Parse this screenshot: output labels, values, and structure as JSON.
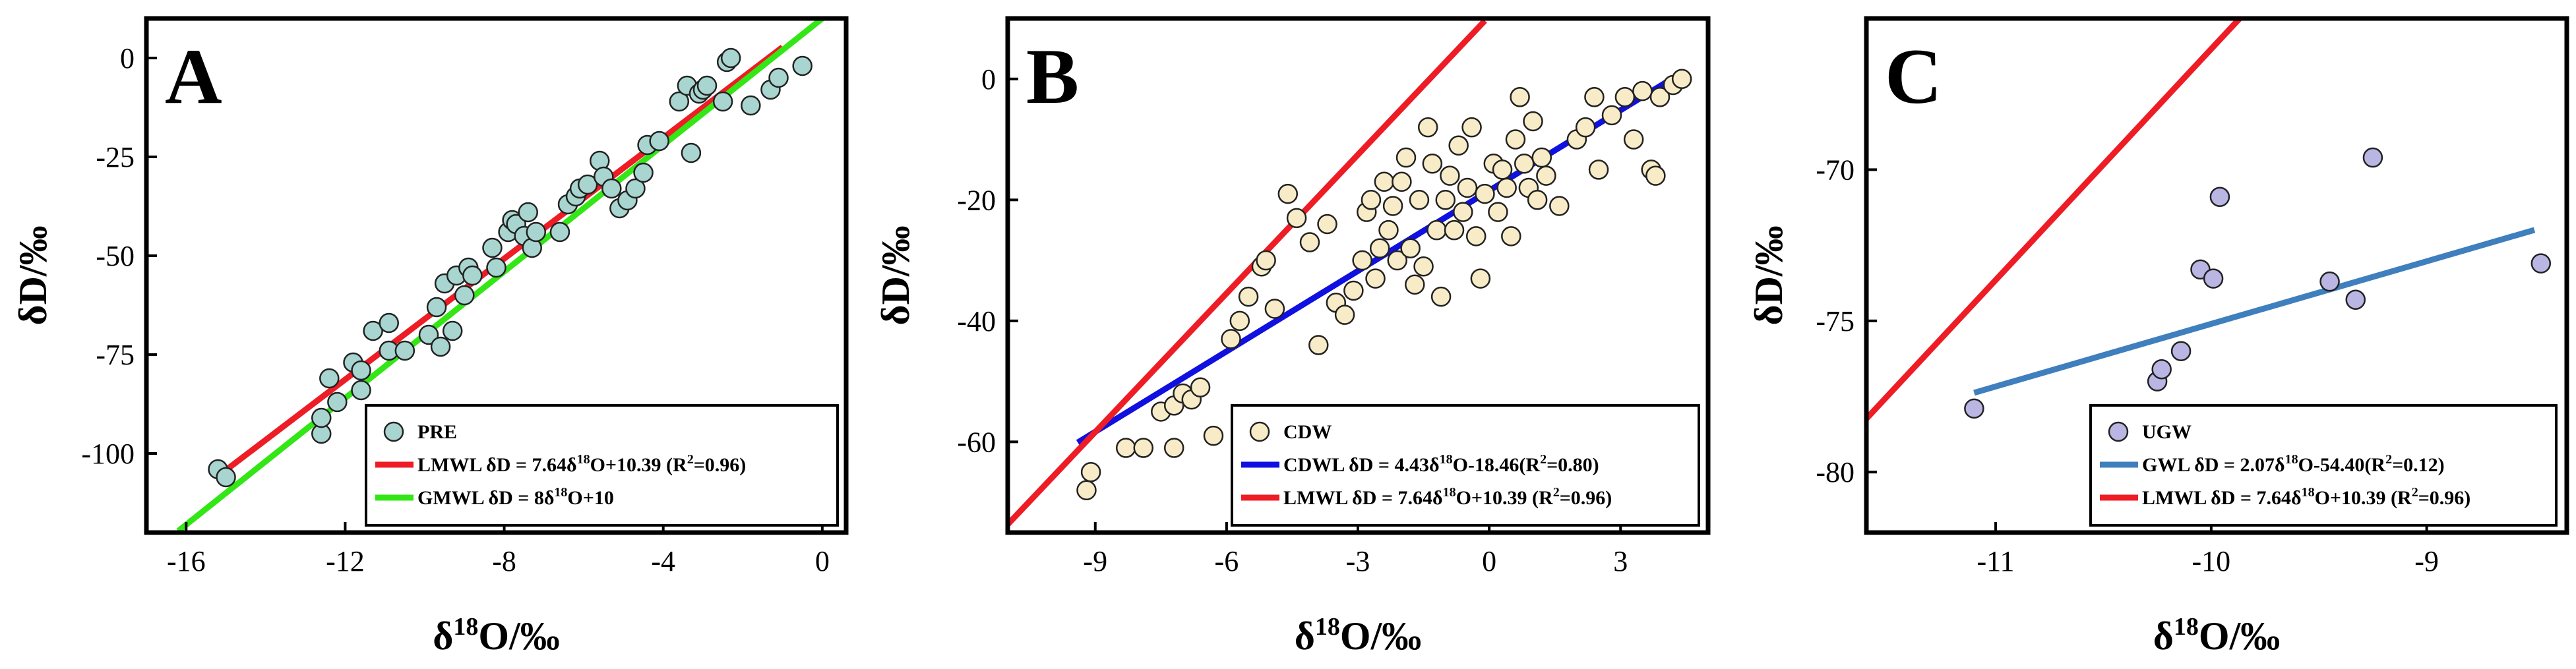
{
  "chart_data": [
    {
      "panel": "A",
      "type": "scatter",
      "xlabel_main": "δ",
      "xlabel_sup": "18",
      "xlabel_tail": "O/‰",
      "ylabel": "δD/‰",
      "xlim": [
        -17,
        0.6
      ],
      "ylim": [
        -120,
        10
      ],
      "xticks": [
        -16,
        -12,
        -8,
        -4,
        0
      ],
      "yticks": [
        0,
        -25,
        -50,
        -75,
        -100
      ],
      "scatter": {
        "name": "PRE",
        "color": "#a8d5cf",
        "points": [
          [
            -15.2,
            -104
          ],
          [
            -15,
            -106
          ],
          [
            -12.6,
            -95
          ],
          [
            -12.6,
            -91
          ],
          [
            -12.4,
            -81
          ],
          [
            -12.2,
            -87
          ],
          [
            -11.8,
            -77
          ],
          [
            -11.6,
            -84
          ],
          [
            -11.6,
            -79
          ],
          [
            -11.3,
            -69
          ],
          [
            -10.9,
            -67
          ],
          [
            -10.9,
            -74
          ],
          [
            -10.5,
            -74
          ],
          [
            -9.9,
            -70
          ],
          [
            -9.7,
            -63
          ],
          [
            -9.6,
            -73
          ],
          [
            -9.5,
            -57
          ],
          [
            -9.3,
            -69
          ],
          [
            -9.2,
            -55
          ],
          [
            -9,
            -60
          ],
          [
            -8.9,
            -53
          ],
          [
            -8.8,
            -55
          ],
          [
            -8.3,
            -48
          ],
          [
            -8.2,
            -53
          ],
          [
            -7.9,
            -44
          ],
          [
            -7.8,
            -41
          ],
          [
            -7.7,
            -42
          ],
          [
            -7.5,
            -45
          ],
          [
            -7.4,
            -39
          ],
          [
            -7.3,
            -48
          ],
          [
            -7.2,
            -44
          ],
          [
            -6.6,
            -44
          ],
          [
            -6.4,
            -37
          ],
          [
            -6.2,
            -35
          ],
          [
            -6.1,
            -33
          ],
          [
            -5.9,
            -32
          ],
          [
            -5.6,
            -26
          ],
          [
            -5.5,
            -30
          ],
          [
            -5.3,
            -33
          ],
          [
            -5.1,
            -38
          ],
          [
            -4.9,
            -36
          ],
          [
            -4.7,
            -33
          ],
          [
            -4.5,
            -29
          ],
          [
            -4.4,
            -22
          ],
          [
            -4.1,
            -21
          ],
          [
            -3.6,
            -11
          ],
          [
            -3.4,
            -7
          ],
          [
            -3.3,
            -24
          ],
          [
            -3.1,
            -9
          ],
          [
            -3,
            -8
          ],
          [
            -2.9,
            -7
          ],
          [
            -2.5,
            -11
          ],
          [
            -2.4,
            -1
          ],
          [
            -2.3,
            0
          ],
          [
            -1.8,
            -12
          ],
          [
            -1.3,
            -8
          ],
          [
            -1.1,
            -5
          ],
          [
            -0.5,
            -2
          ]
        ]
      },
      "lines": [
        {
          "name": "LMWL",
          "equation": "δD = 7.64δ18O+10.39 (R2=0.96)",
          "legend": [
            "LMWL  δD = 7.64δ",
            "18",
            "O+10.39 (R",
            "2",
            "=0.96)"
          ],
          "color": "#ee1c25",
          "slope": 7.64,
          "intercept": 10.39,
          "x_range": [
            -15,
            -1
          ]
        },
        {
          "name": "GMWL",
          "equation": "δD = 8δ18O+10",
          "legend": [
            "GMWL  δD = 8δ",
            "18",
            "O+10",
            "",
            ""
          ],
          "color": "#33e615",
          "slope": 8,
          "intercept": 10,
          "x_range": [
            -16.2,
            0
          ]
        }
      ]
    },
    {
      "panel": "B",
      "type": "scatter",
      "xlabel_main": "δ",
      "xlabel_sup": "18",
      "xlabel_tail": "O/‰",
      "ylabel": "δD/‰",
      "xlim": [
        -11,
        5
      ],
      "ylim": [
        -75,
        10
      ],
      "xticks": [
        -9,
        -6,
        -3,
        0,
        3
      ],
      "yticks": [
        0,
        -20,
        -40,
        -60
      ],
      "scatter": {
        "name": "CDW",
        "color": "#f8ecc8",
        "points": [
          [
            -9.2,
            -68
          ],
          [
            -9.1,
            -65
          ],
          [
            -8.3,
            -61
          ],
          [
            -7.9,
            -61
          ],
          [
            -7.5,
            -55
          ],
          [
            -7.2,
            -61
          ],
          [
            -7.2,
            -54
          ],
          [
            -7,
            -52
          ],
          [
            -6.8,
            -53
          ],
          [
            -6.6,
            -51
          ],
          [
            -6.3,
            -59
          ],
          [
            -5.9,
            -43
          ],
          [
            -5.7,
            -40
          ],
          [
            -5.5,
            -36
          ],
          [
            -5.2,
            -31
          ],
          [
            -5.1,
            -30
          ],
          [
            -4.9,
            -38
          ],
          [
            -4.6,
            -19
          ],
          [
            -4.4,
            -23
          ],
          [
            -4.1,
            -27
          ],
          [
            -3.9,
            -44
          ],
          [
            -3.7,
            -24
          ],
          [
            -3.5,
            -37
          ],
          [
            -3.3,
            -39
          ],
          [
            -3.1,
            -35
          ],
          [
            -2.9,
            -30
          ],
          [
            -2.8,
            -22
          ],
          [
            -2.7,
            -20
          ],
          [
            -2.6,
            -33
          ],
          [
            -2.5,
            -28
          ],
          [
            -2.4,
            -17
          ],
          [
            -2.3,
            -25
          ],
          [
            -2.2,
            -21
          ],
          [
            -2.1,
            -30
          ],
          [
            -2,
            -17
          ],
          [
            -1.9,
            -13
          ],
          [
            -1.8,
            -28
          ],
          [
            -1.7,
            -34
          ],
          [
            -1.6,
            -20
          ],
          [
            -1.5,
            -31
          ],
          [
            -1.4,
            -8
          ],
          [
            -1.3,
            -14
          ],
          [
            -1.2,
            -25
          ],
          [
            -1.1,
            -36
          ],
          [
            -1,
            -20
          ],
          [
            -0.9,
            -16
          ],
          [
            -0.8,
            -25
          ],
          [
            -0.7,
            -11
          ],
          [
            -0.6,
            -22
          ],
          [
            -0.5,
            -18
          ],
          [
            -0.4,
            -8
          ],
          [
            -0.3,
            -26
          ],
          [
            -0.2,
            -33
          ],
          [
            -0.1,
            -19
          ],
          [
            0.1,
            -14
          ],
          [
            0.2,
            -22
          ],
          [
            0.3,
            -15
          ],
          [
            0.4,
            -18
          ],
          [
            0.5,
            -26
          ],
          [
            0.6,
            -10
          ],
          [
            0.7,
            -3
          ],
          [
            0.8,
            -14
          ],
          [
            0.9,
            -18
          ],
          [
            1,
            -7
          ],
          [
            1.1,
            -20
          ],
          [
            1.2,
            -13
          ],
          [
            1.3,
            -16
          ],
          [
            1.6,
            -21
          ],
          [
            2,
            -10
          ],
          [
            2.2,
            -8
          ],
          [
            2.4,
            -3
          ],
          [
            2.5,
            -15
          ],
          [
            2.8,
            -6
          ],
          [
            3.1,
            -3
          ],
          [
            3.3,
            -10
          ],
          [
            3.5,
            -2
          ],
          [
            3.7,
            -15
          ],
          [
            3.8,
            -16
          ],
          [
            3.9,
            -3
          ],
          [
            4.2,
            -1
          ],
          [
            4.4,
            0
          ]
        ]
      },
      "lines": [
        {
          "name": "CDWL",
          "equation": "δD = 4.43δ18O-18.46(R2=0.80)",
          "legend": [
            "CDWL  δD = 4.43δ",
            "18",
            "O-18.46(R",
            "2",
            "=0.80)"
          ],
          "color": "#1010e0",
          "slope": 4.43,
          "intercept": -18.46,
          "x_range": [
            -9.4,
            4.3
          ]
        },
        {
          "name": "LMWL",
          "equation": "δD = 7.64δ18O+10.39 (R2=0.96)",
          "legend": [
            "LMWL  δD = 7.64δ",
            "18",
            "O+10.39 (R",
            "2",
            "=0.96)"
          ],
          "color": "#ee1c25",
          "slope": 7.64,
          "intercept": 10.39,
          "x_range": [
            -11,
            -0.1
          ]
        }
      ]
    },
    {
      "panel": "C",
      "type": "scatter",
      "xlabel_main": "δ",
      "xlabel_sup": "18",
      "xlabel_tail": "O/‰",
      "ylabel": "δD/‰",
      "xlim": [
        -11.6,
        -8.35
      ],
      "ylim": [
        -82,
        -65
      ],
      "xticks": [
        -11,
        -10,
        -9
      ],
      "yticks": [
        -70,
        -75,
        -80
      ],
      "scatter": {
        "name": "UGW",
        "color": "#b9b6e4",
        "points": [
          [
            -11.1,
            -77.9
          ],
          [
            -10.25,
            -77
          ],
          [
            -10.23,
            -76.6
          ],
          [
            -10.14,
            -76
          ],
          [
            -10.05,
            -73.3
          ],
          [
            -9.99,
            -73.6
          ],
          [
            -9.96,
            -70.9
          ],
          [
            -9.45,
            -73.7
          ],
          [
            -9.33,
            -74.3
          ],
          [
            -9.25,
            -69.6
          ],
          [
            -8.47,
            -73.1
          ]
        ]
      },
      "lines": [
        {
          "name": "GWL",
          "equation": "δD = 2.07δ18O-54.40(R2=0.12)",
          "legend": [
            "GWL  δD = 2.07δ",
            "18",
            "O-54.40(R",
            "2",
            "=0.12)"
          ],
          "color": "#3f7fbd",
          "slope": 2.07,
          "intercept": -54.4,
          "x_range": [
            -11.1,
            -8.5
          ]
        },
        {
          "name": "LMWL",
          "equation": "δD = 7.64δ18O+10.39 (R2=0.96)",
          "legend": [
            "LMWL  δD = 7.64δ",
            "18",
            "O+10.39 (R",
            "2",
            "=0.96)"
          ],
          "color": "#ee1c25",
          "slope": 7.64,
          "intercept": 10.39,
          "x_range": [
            -11.6,
            -8.35
          ]
        }
      ]
    }
  ]
}
